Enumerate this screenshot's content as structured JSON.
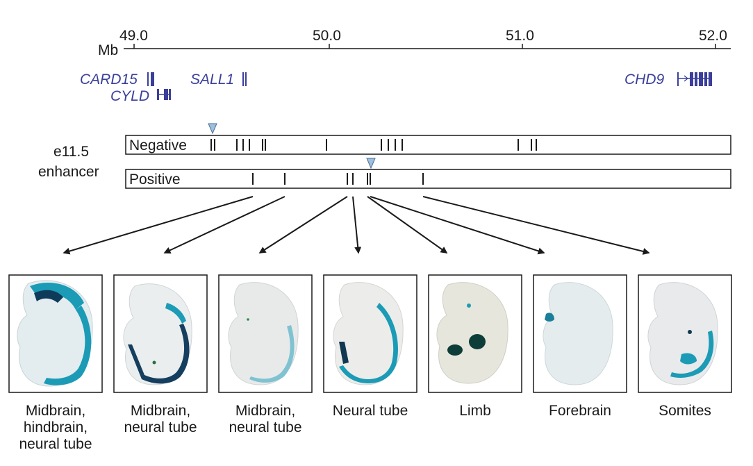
{
  "axis": {
    "unit": "Mb",
    "ticks": [
      "49.0",
      "50.0",
      "51.0",
      "52.0"
    ]
  },
  "genes": [
    {
      "name": "CARD15",
      "color": "#3a3f9a"
    },
    {
      "name": "CYLD",
      "color": "#3a3f9a"
    },
    {
      "name": "SALL1",
      "color": "#3a3f9a"
    },
    {
      "name": "CHD9",
      "color": "#3a3f9a"
    }
  ],
  "enhancer_label": [
    "e11.5",
    "enhancer"
  ],
  "tracks": {
    "negative": {
      "label": "Negative"
    },
    "positive": {
      "label": "Positive"
    }
  },
  "marker_color": "#9fbfdc",
  "panels": [
    {
      "caption": [
        "Midbrain,",
        "hindbrain,",
        "neural tube"
      ],
      "stain": "midbrain-hindbrain-neural-tube"
    },
    {
      "caption": [
        "Midbrain,",
        "neural tube"
      ],
      "stain": "midbrain-neural-tube"
    },
    {
      "caption": [
        "Midbrain,",
        "neural tube"
      ],
      "stain": "midbrain-neural-tube-faint"
    },
    {
      "caption": [
        "Neural tube"
      ],
      "stain": "neural-tube"
    },
    {
      "caption": [
        "Limb"
      ],
      "stain": "limb"
    },
    {
      "caption": [
        "Forebrain"
      ],
      "stain": "forebrain"
    },
    {
      "caption": [
        "Somites"
      ],
      "stain": "somites"
    }
  ],
  "colors": {
    "stain": "#1b9bb6",
    "stain_dark": "#0f3b5a",
    "embryo": "#e9ecea"
  }
}
